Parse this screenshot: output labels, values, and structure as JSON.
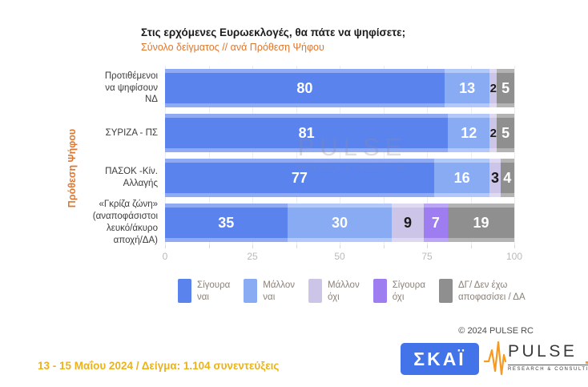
{
  "header": {
    "title": "Στις ερχόμενες Ευρωεκλογές, θα πάτε να ψηφίσετε;",
    "subtitle": "Σύνολο δείγματος // ανά Πρόθεση Ψήφου"
  },
  "chart_data": {
    "type": "bar",
    "orientation": "horizontal",
    "stacked": true,
    "title": "Στις ερχόμενες Ευρωεκλογές, θα πάτε να ψηφίσετε;",
    "subtitle": "Σύνολο δείγματος // ανά Πρόθεση Ψήφου",
    "ylabel": "Πρόθεση Ψήφου",
    "xlim": [
      0,
      100
    ],
    "x_ticks": [
      0,
      12.5,
      25,
      37.5,
      50,
      62.5,
      75,
      87.5,
      100
    ],
    "x_tick_labels": [
      0,
      25,
      50,
      75,
      100
    ],
    "grid": true,
    "legend_position": "bottom",
    "categories": [
      {
        "label_lines": [
          "Προτιθέμενοι",
          "να ψηφίσουν",
          "ΝΔ"
        ]
      },
      {
        "label_lines": [
          "ΣΥΡΙΖΑ - ΠΣ"
        ]
      },
      {
        "label_lines": [
          "ΠΑΣΟΚ -Κίν.",
          "Αλλαγής"
        ]
      },
      {
        "label_lines": [
          "«Γκρίζα ζώνη»",
          "(αναποφάσιστοι",
          "λευκό/άκυρο",
          "αποχή/ΔΑ)"
        ]
      }
    ],
    "series": [
      {
        "name": "Σίγουρα ναι",
        "legend_lines": [
          "Σίγουρα",
          "ναι"
        ],
        "color": "#5b83ee",
        "halo_color": "#8fa9f3",
        "value_color": "#ffffff",
        "values": [
          80,
          81,
          77,
          35
        ]
      },
      {
        "name": "Μάλλον ναι",
        "legend_lines": [
          "Μάλλον",
          "ναι"
        ],
        "color": "#88abf4",
        "halo_color": "#b2c8f8",
        "value_color": "#ffffff",
        "values": [
          13,
          12,
          16,
          30
        ]
      },
      {
        "name": "Μάλλον όχι",
        "legend_lines": [
          "Μάλλον",
          "όχι"
        ],
        "color": "#cdc5e8",
        "halo_color": "#ded9f0",
        "value_color": "#1a1a1a",
        "values": [
          2,
          2,
          3,
          9
        ]
      },
      {
        "name": "Σίγουρα όχι",
        "legend_lines": [
          "Σίγουρα",
          "όχι"
        ],
        "color": "#9d7df0",
        "halo_color": "#bba6f5",
        "value_color": "#ffffff",
        "values": [
          0,
          0,
          0,
          7
        ]
      },
      {
        "name": "ΔΓ/ Δεν έχω αποφασίσει / ΔΑ",
        "legend_lines": [
          "ΔΓ/ Δεν έχω",
          "αποφασίσει / ΔΑ"
        ],
        "color": "#8f8f8f",
        "halo_color": "#b3b3b3",
        "value_color": "#ffffff",
        "values": [
          5,
          5,
          4,
          19
        ]
      }
    ]
  },
  "watermark": {
    "line1": "PULSE",
    "line2": "RESEARCH & CONSULTING"
  },
  "footer": {
    "copyright": "© 2024 PULSE RC",
    "fieldwork": "13 - 15  Μαΐου 2024  /  Δείγμα:  1.104 συνεντεύξεις",
    "skai_logo_text": "ΣΚΑΪ",
    "pulse_logo_text": "PULSE",
    "pulse_logo_subtext": "RESEARCH & CONSULTING"
  },
  "colors": {
    "accent_orange": "#e0762e",
    "footnote_gold": "#eab31c",
    "skai_blue": "#4273e8",
    "pulse_orange": "#f59a23",
    "axis_label_gray": "#b9b9b9",
    "legend_text_gray": "#8b8178"
  }
}
